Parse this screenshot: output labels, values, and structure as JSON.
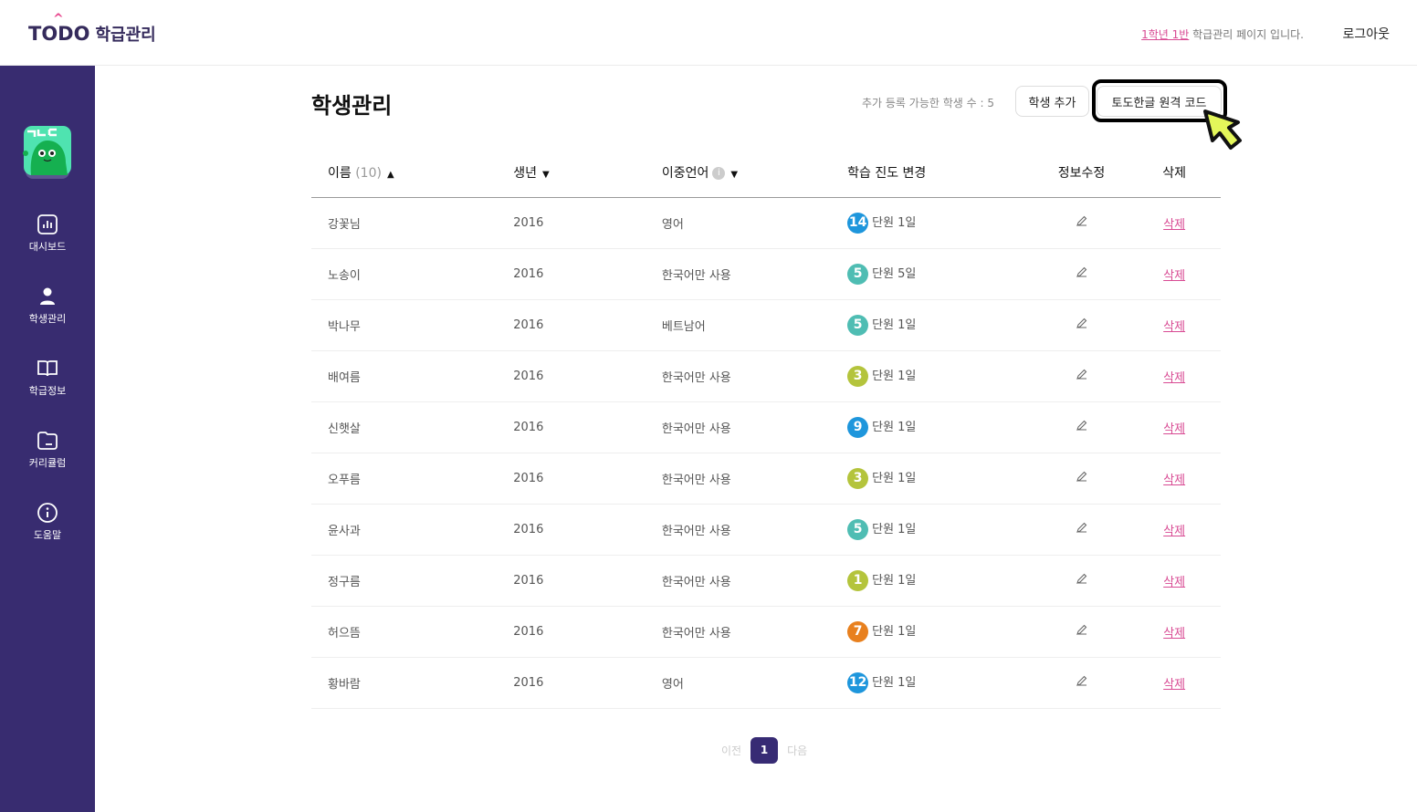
{
  "header": {
    "logo_en": "TODO",
    "logo_ko": "학급관리",
    "class_link": "1학년 1반",
    "info_suffix": " 학급관리 페이지 입니다.",
    "logout": "로그아웃"
  },
  "sidebar": {
    "items": [
      {
        "label": "대시보드",
        "icon": "chart-icon"
      },
      {
        "label": "학생관리",
        "icon": "user-icon"
      },
      {
        "label": "학급정보",
        "icon": "book-icon"
      },
      {
        "label": "커리큘럼",
        "icon": "folder-icon"
      },
      {
        "label": "도움말",
        "icon": "info-icon"
      }
    ]
  },
  "main": {
    "title": "학생관리",
    "available_count": "추가 등록 가능한 학생 수 : 5",
    "add_student": "학생 추가",
    "remote_code": "토도한글 원격 코드",
    "columns": {
      "name": "이름",
      "name_count": "(10)",
      "birth": "생년",
      "language": "이중언어",
      "progress": "학습 진도 변경",
      "edit": "정보수정",
      "delete": "삭제"
    },
    "rows": [
      {
        "name": "강꽃님",
        "birth": "2016",
        "language": "영어",
        "unit": "14",
        "progress": "단원 1일",
        "color": "#1e96dc"
      },
      {
        "name": "노송이",
        "birth": "2016",
        "language": "한국어만 사용",
        "unit": "5",
        "progress": "단원 5일",
        "color": "#4fbdb3"
      },
      {
        "name": "박나무",
        "birth": "2016",
        "language": "베트남어",
        "unit": "5",
        "progress": "단원 1일",
        "color": "#4fbdb3"
      },
      {
        "name": "배여름",
        "birth": "2016",
        "language": "한국어만 사용",
        "unit": "3",
        "progress": "단원 1일",
        "color": "#b4c43c"
      },
      {
        "name": "신햇살",
        "birth": "2016",
        "language": "한국어만 사용",
        "unit": "9",
        "progress": "단원 1일",
        "color": "#1e96dc"
      },
      {
        "name": "오푸름",
        "birth": "2016",
        "language": "한국어만 사용",
        "unit": "3",
        "progress": "단원 1일",
        "color": "#b4c43c"
      },
      {
        "name": "윤사과",
        "birth": "2016",
        "language": "한국어만 사용",
        "unit": "5",
        "progress": "단원 1일",
        "color": "#4fbdb3"
      },
      {
        "name": "정구름",
        "birth": "2016",
        "language": "한국어만 사용",
        "unit": "1",
        "progress": "단원 1일",
        "color": "#b4c43c"
      },
      {
        "name": "허으뜸",
        "birth": "2016",
        "language": "한국어만 사용",
        "unit": "7",
        "progress": "단원 1일",
        "color": "#e8801e"
      },
      {
        "name": "황바람",
        "birth": "2016",
        "language": "영어",
        "unit": "12",
        "progress": "단원 1일",
        "color": "#1e96dc"
      }
    ],
    "delete_label": "삭제"
  },
  "pager": {
    "prev": "이전",
    "current": "1",
    "next": "다음"
  },
  "colors": {
    "sidebar": "#382c70",
    "accent": "#d84a93",
    "cursor": "#e4f75a"
  }
}
